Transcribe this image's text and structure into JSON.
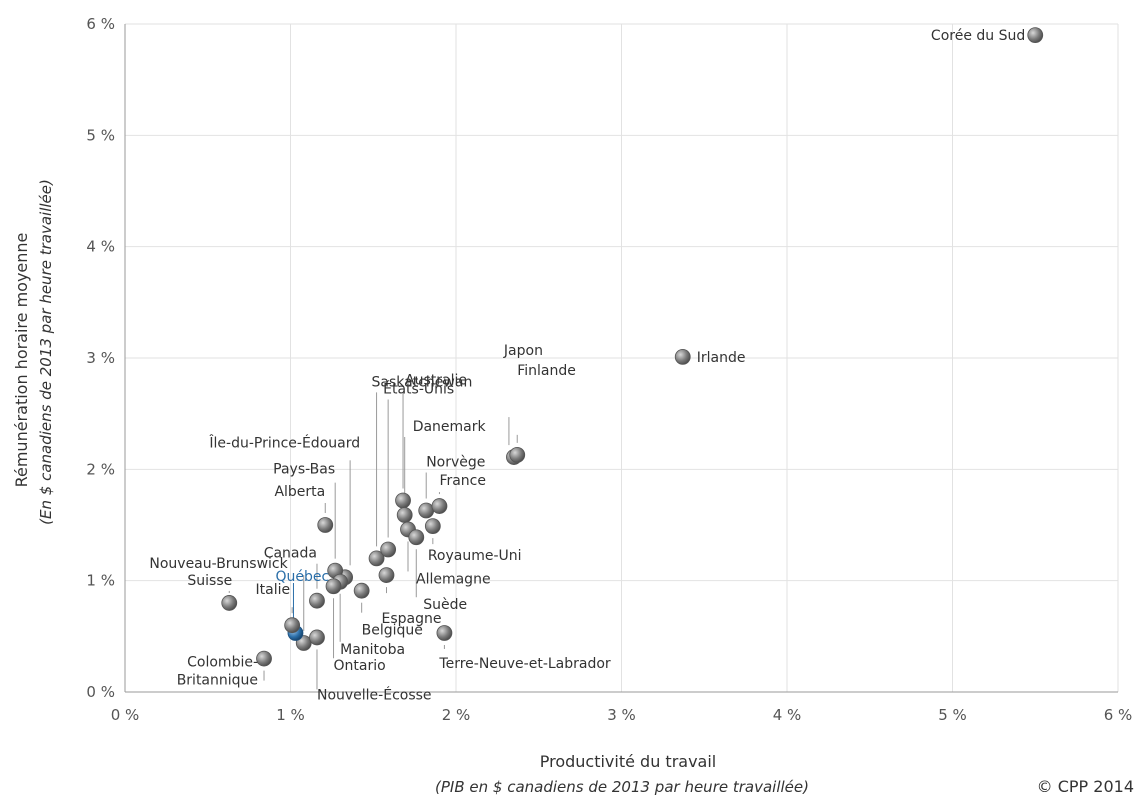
{
  "chart_data": {
    "type": "scatter",
    "xlabel": "Productivité du travail",
    "xlabel_sub": "(PIB en $ canadiens de 2013 par heure travaillée)",
    "ylabel": "Rémunération horaire moyenne",
    "ylabel_sub": "(En $ canadiens de 2013 par heure travaillée)",
    "xlim": [
      0,
      6
    ],
    "ylim": [
      0,
      6
    ],
    "x_ticks": [
      "0 %",
      "1 %",
      "2 %",
      "3 %",
      "4 %",
      "5 %",
      "6 %"
    ],
    "y_ticks": [
      "0 %",
      "1 %",
      "2 %",
      "3 %",
      "4 %",
      "5 %",
      "6 %"
    ],
    "grid": true,
    "point_color": "#7a7a7a",
    "highlight_color": "#2a6ea8",
    "points": [
      {
        "name": "Corée du Sud",
        "x": 5.5,
        "y": 5.9
      },
      {
        "name": "Irlande",
        "x": 3.37,
        "y": 3.01
      },
      {
        "name": "Japon",
        "x": 2.35,
        "y": 2.11
      },
      {
        "name": "Finlande",
        "x": 2.37,
        "y": 2.13
      },
      {
        "name": "Saskatchewan",
        "x": 1.52,
        "y": 1.2
      },
      {
        "name": "États-Unis",
        "x": 1.59,
        "y": 1.28
      },
      {
        "name": "Australie",
        "x": 1.68,
        "y": 1.72
      },
      {
        "name": "Danemark",
        "x": 1.69,
        "y": 1.59
      },
      {
        "name": "Norvège",
        "x": 1.82,
        "y": 1.63
      },
      {
        "name": "France",
        "x": 1.9,
        "y": 1.67
      },
      {
        "name": "Royaume-Uni",
        "x": 1.86,
        "y": 1.49
      },
      {
        "name": "Allemagne",
        "x": 1.71,
        "y": 1.46
      },
      {
        "name": "Suède",
        "x": 1.76,
        "y": 1.39
      },
      {
        "name": "Espagne",
        "x": 1.58,
        "y": 1.05
      },
      {
        "name": "Belgique",
        "x": 1.43,
        "y": 0.91
      },
      {
        "name": "Terre-Neuve-et-Labrador",
        "x": 1.93,
        "y": 0.53
      },
      {
        "name": "Île-du-Prince-Édouard",
        "x": 1.33,
        "y": 1.03
      },
      {
        "name": "Pays-Bas",
        "x": 1.27,
        "y": 1.09
      },
      {
        "name": "Alberta",
        "x": 1.21,
        "y": 1.5
      },
      {
        "name": "Canada",
        "x": 1.16,
        "y": 0.82
      },
      {
        "name": "Nouveau-Brunswick",
        "x": 1.08,
        "y": 0.44
      },
      {
        "name": "Manitoba",
        "x": 1.3,
        "y": 0.99
      },
      {
        "name": "Ontario",
        "x": 1.26,
        "y": 0.95
      },
      {
        "name": "Nouvelle-Écosse",
        "x": 1.16,
        "y": 0.49
      },
      {
        "name": "Québec",
        "x": 1.03,
        "y": 0.53,
        "highlight": true
      },
      {
        "name": "Italie",
        "x": 1.01,
        "y": 0.6
      },
      {
        "name": "Suisse",
        "x": 0.63,
        "y": 0.8
      },
      {
        "name": "Colombie-Britannique",
        "x": 0.84,
        "y": 0.3
      }
    ]
  },
  "copyright": "© CPP 2014"
}
